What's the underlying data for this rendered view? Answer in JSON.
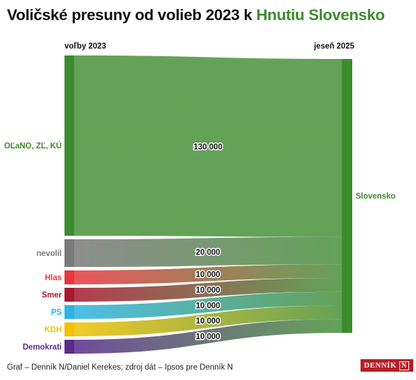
{
  "header": {
    "title_prefix": "Voličské presuny od volieb 2023 k",
    "title_highlight": "Hnutiu Slovensko"
  },
  "columns": {
    "left": "voľby 2023",
    "right": "jeseň 2025"
  },
  "footer": {
    "credit": "Graf – Denník N/Daniel Kerekes; zdroj dát – Ipsos pre Denník N",
    "logo_text": "DENNÍK",
    "logo_mark": "N"
  },
  "colors": {
    "target": "#3d8b2f",
    "highlight": "#3d8b2f"
  },
  "chart_data": {
    "type": "sankey",
    "target": {
      "label": "Slovensko",
      "color": "#3d8b2f"
    },
    "flows": [
      {
        "source": "OĽaNO, ZĽ, KÚ",
        "value": 130000,
        "label": "130 000",
        "color": "#3d8b2f"
      },
      {
        "source": "nevolil",
        "value": 20000,
        "label": "20 000",
        "color": "#7a7a7a"
      },
      {
        "source": "Hlas",
        "value": 10000,
        "label": "10 000",
        "color": "#e8373d"
      },
      {
        "source": "Smer",
        "value": 10000,
        "label": "10 000",
        "color": "#a6192e"
      },
      {
        "source": "PS",
        "value": 10000,
        "label": "10 000",
        "color": "#2eb3e6"
      },
      {
        "source": "KDH",
        "value": 10000,
        "label": "10 000",
        "color": "#f2c100"
      },
      {
        "source": "Demokrati",
        "value": 10000,
        "label": "10 000",
        "color": "#5a2a8c"
      }
    ]
  }
}
